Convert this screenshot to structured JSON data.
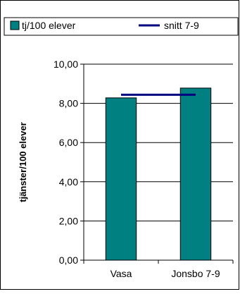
{
  "chart_data": {
    "type": "bar",
    "categories": [
      "Vasa",
      "Jonsbo 7-9"
    ],
    "series": [
      {
        "name": "tj/100 elever",
        "kind": "bar",
        "values": [
          8.28,
          8.78
        ],
        "color": "#008080"
      },
      {
        "name": "snitt 7-9",
        "kind": "line",
        "values": [
          8.44,
          8.44
        ],
        "color": "#000080"
      }
    ],
    "title": "",
    "xlabel": "",
    "ylabel": "tjänster/100 elever",
    "ylim": [
      0,
      10
    ],
    "yticks": [
      "0,00",
      "2,00",
      "4,00",
      "6,00",
      "8,00",
      "10,00"
    ],
    "grid": true,
    "legend_position": "top"
  }
}
